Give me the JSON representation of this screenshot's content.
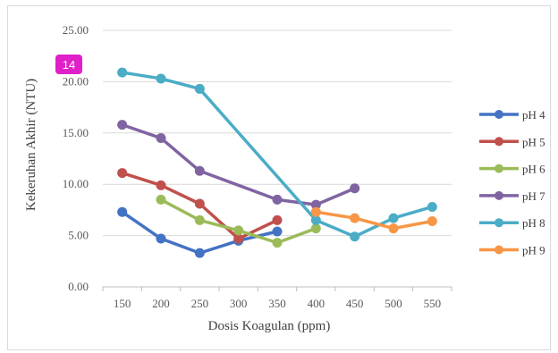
{
  "badge": {
    "text": "14",
    "color": "#e020c8"
  },
  "chart_data": {
    "type": "line",
    "xlabel": "Dosis Koagulan (ppm)",
    "ylabel": "Kekeruhan Akhir (NTU)",
    "ylim": [
      0,
      25
    ],
    "yticks": [
      "0.00",
      "5.00",
      "10.00",
      "15.00",
      "20.00",
      "25.00"
    ],
    "categories": [
      "150",
      "200",
      "250",
      "300",
      "350",
      "400",
      "450",
      "500",
      "550"
    ],
    "grid": true,
    "legend_position": "right",
    "series": [
      {
        "name": "pH 4",
        "color": "#4472c4",
        "values": [
          7.3,
          4.7,
          3.3,
          4.5,
          5.4,
          null,
          null,
          null,
          null
        ]
      },
      {
        "name": "pH 5",
        "color": "#c0504d",
        "values": [
          11.1,
          9.9,
          8.1,
          4.7,
          6.5,
          null,
          null,
          null,
          null
        ]
      },
      {
        "name": "pH 6",
        "color": "#9bbb59",
        "values": [
          null,
          8.5,
          6.5,
          5.5,
          4.3,
          5.7,
          null,
          null,
          null
        ]
      },
      {
        "name": "pH 7",
        "color": "#8064a2",
        "values": [
          15.8,
          14.5,
          11.3,
          null,
          8.5,
          8.0,
          9.6,
          null,
          null
        ]
      },
      {
        "name": "pH 8",
        "color": "#4bacc6",
        "values": [
          20.9,
          20.3,
          19.3,
          null,
          null,
          6.5,
          4.9,
          6.7,
          7.8
        ]
      },
      {
        "name": "pH 9",
        "color": "#f79646",
        "values": [
          null,
          null,
          null,
          null,
          null,
          7.3,
          6.7,
          5.7,
          6.4
        ]
      }
    ]
  }
}
